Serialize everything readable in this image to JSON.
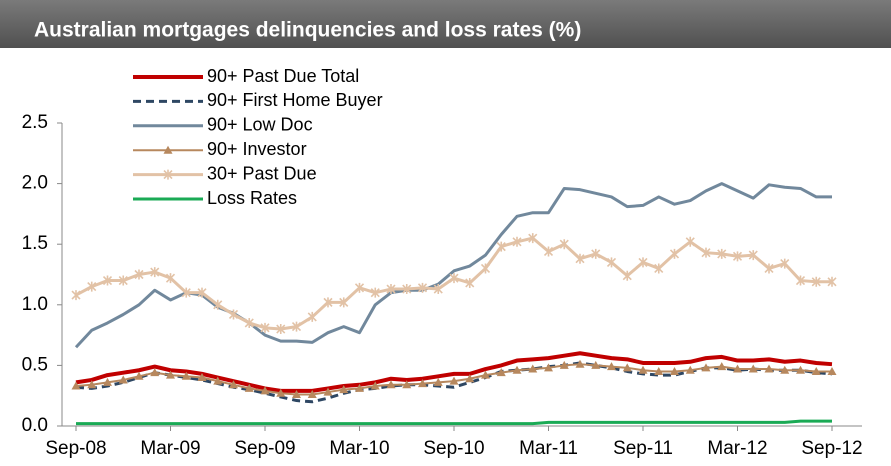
{
  "chart_data": {
    "type": "line",
    "title": "Australian mortgages delinquencies and loss rates (%)",
    "categories": [
      "Sep-08",
      null,
      null,
      null,
      null,
      null,
      "Mar-09",
      null,
      null,
      null,
      null,
      null,
      "Sep-09",
      null,
      null,
      null,
      null,
      null,
      "Mar-10",
      null,
      null,
      null,
      null,
      null,
      "Sep-10",
      null,
      null,
      null,
      null,
      null,
      "Mar-11",
      null,
      null,
      null,
      null,
      null,
      "Sep-11",
      null,
      null,
      null,
      null,
      null,
      "Mar-12",
      null,
      null,
      null,
      null,
      null,
      "Sep-12"
    ],
    "ylim": [
      0,
      2.5
    ],
    "yticks": [
      {
        "value": 0,
        "label": "0.0"
      },
      0.5,
      {
        "value": 1,
        "label": "1.0"
      },
      1.5,
      {
        "value": 2,
        "label": "2.0"
      },
      2.5
    ],
    "legend": "top-left",
    "series": [
      {
        "name": "90+ Past Due Total",
        "color": "#c00000",
        "line_width": 4,
        "values": [
          0.36,
          0.38,
          0.42,
          0.44,
          0.46,
          0.49,
          0.46,
          0.45,
          0.43,
          0.4,
          0.37,
          0.34,
          0.31,
          0.29,
          0.29,
          0.29,
          0.31,
          0.33,
          0.34,
          0.36,
          0.39,
          0.38,
          0.39,
          0.41,
          0.43,
          0.43,
          0.47,
          0.5,
          0.54,
          0.55,
          0.56,
          0.58,
          0.6,
          0.58,
          0.56,
          0.55,
          0.52,
          0.52,
          0.52,
          0.53,
          0.56,
          0.57,
          0.54,
          0.54,
          0.55,
          0.53,
          0.54,
          0.52,
          0.51
        ]
      },
      {
        "name": "90+ First Home Buyer",
        "color": "#2e4763",
        "line_width": 3,
        "dash": true,
        "values": [
          0.32,
          0.31,
          0.33,
          0.36,
          0.4,
          0.44,
          0.42,
          0.4,
          0.38,
          0.35,
          0.32,
          0.3,
          0.27,
          0.24,
          0.21,
          0.2,
          0.23,
          0.27,
          0.3,
          0.31,
          0.33,
          0.34,
          0.34,
          0.33,
          0.32,
          0.36,
          0.4,
          0.45,
          0.46,
          0.47,
          0.49,
          0.5,
          0.52,
          0.5,
          0.48,
          0.45,
          0.43,
          0.42,
          0.42,
          0.45,
          0.48,
          0.48,
          0.46,
          0.47,
          0.46,
          0.46,
          0.46,
          0.44,
          0.43
        ]
      },
      {
        "name": "90+ Low Doc",
        "color": "#71889c",
        "line_width": 3,
        "values": [
          0.65,
          0.79,
          0.85,
          0.92,
          1.0,
          1.12,
          1.04,
          1.1,
          1.08,
          0.98,
          0.93,
          0.85,
          0.75,
          0.7,
          0.7,
          0.69,
          0.77,
          0.82,
          0.77,
          1.0,
          1.1,
          1.12,
          1.12,
          1.17,
          1.28,
          1.32,
          1.41,
          1.58,
          1.73,
          1.76,
          1.76,
          1.96,
          1.95,
          1.92,
          1.89,
          1.81,
          1.82,
          1.89,
          1.83,
          1.86,
          1.94,
          2.0,
          1.94,
          1.88,
          1.99,
          1.97,
          1.96,
          1.89,
          1.89
        ]
      },
      {
        "name": "90+ Investor",
        "color": "#b7885e",
        "line_width": 2,
        "marker": "triangle",
        "values": [
          0.33,
          0.34,
          0.36,
          0.38,
          0.41,
          0.44,
          0.42,
          0.41,
          0.4,
          0.37,
          0.34,
          0.31,
          0.29,
          0.27,
          0.26,
          0.26,
          0.28,
          0.3,
          0.31,
          0.33,
          0.34,
          0.34,
          0.35,
          0.36,
          0.37,
          0.39,
          0.42,
          0.44,
          0.46,
          0.47,
          0.48,
          0.5,
          0.51,
          0.5,
          0.49,
          0.48,
          0.46,
          0.45,
          0.45,
          0.46,
          0.48,
          0.49,
          0.47,
          0.47,
          0.47,
          0.46,
          0.46,
          0.45,
          0.45
        ]
      },
      {
        "name": "30+ Past Due",
        "color": "#e2c2a6",
        "line_width": 3,
        "marker": "star",
        "values": [
          1.08,
          1.15,
          1.2,
          1.2,
          1.25,
          1.27,
          1.22,
          1.1,
          1.1,
          1.0,
          0.92,
          0.85,
          0.81,
          0.8,
          0.82,
          0.9,
          1.02,
          1.02,
          1.14,
          1.1,
          1.13,
          1.13,
          1.14,
          1.13,
          1.22,
          1.18,
          1.3,
          1.48,
          1.52,
          1.55,
          1.44,
          1.5,
          1.38,
          1.42,
          1.35,
          1.24,
          1.35,
          1.3,
          1.42,
          1.52,
          1.43,
          1.42,
          1.4,
          1.41,
          1.3,
          1.34,
          1.2,
          1.19,
          1.19
        ]
      },
      {
        "name": "Loss Rates",
        "color": "#1aaa55",
        "line_width": 3,
        "values": [
          0.02,
          0.02,
          0.02,
          0.02,
          0.02,
          0.02,
          0.02,
          0.02,
          0.02,
          0.02,
          0.02,
          0.02,
          0.02,
          0.02,
          0.02,
          0.02,
          0.02,
          0.02,
          0.02,
          0.02,
          0.02,
          0.02,
          0.02,
          0.02,
          0.02,
          0.02,
          0.02,
          0.02,
          0.02,
          0.02,
          0.03,
          0.03,
          0.03,
          0.03,
          0.03,
          0.03,
          0.03,
          0.03,
          0.03,
          0.03,
          0.03,
          0.03,
          0.03,
          0.03,
          0.03,
          0.03,
          0.04,
          0.04,
          0.04
        ]
      }
    ]
  }
}
